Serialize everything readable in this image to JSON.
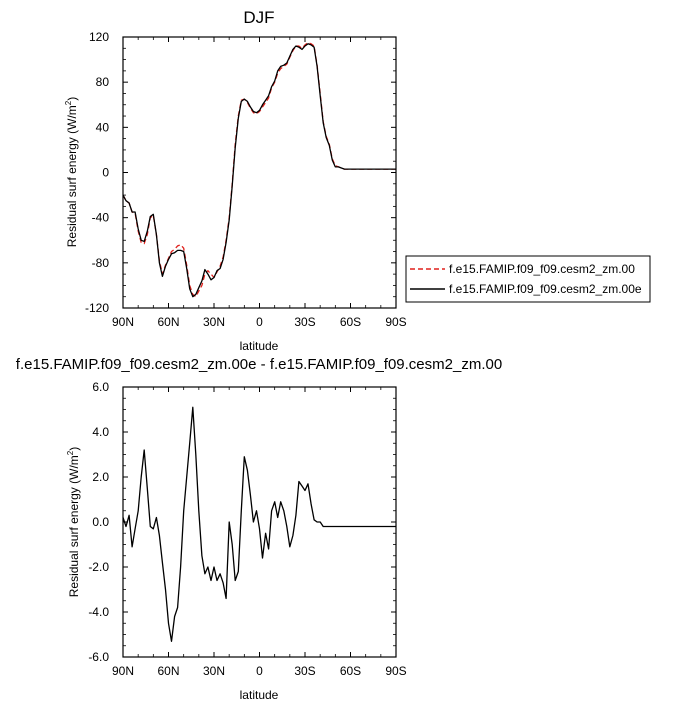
{
  "chart_data": [
    {
      "type": "line",
      "title": "DJF",
      "xlabel": "latitude",
      "ylabel": "Residual surf energy (W/m",
      "ylabel_sup": "2",
      "ylabel_close": ")",
      "xlim": [
        90,
        -90
      ],
      "ylim": [
        -120,
        120
      ],
      "x_ticks": [
        90,
        60,
        30,
        0,
        -30,
        -60,
        -90
      ],
      "x_tick_labels": [
        "90N",
        "60N",
        "30N",
        "0",
        "30S",
        "60S",
        "90S"
      ],
      "y_ticks": [
        -120,
        -80,
        -40,
        0,
        40,
        80,
        120
      ],
      "y_tick_labels": [
        "-120",
        "-80",
        "-40",
        "0",
        "40",
        "80",
        "120"
      ],
      "legend_position": "right",
      "series": [
        {
          "name": "f.e15.FAMIP.f09_f09.cesm2_zm.00",
          "color": "#e0201b",
          "dash": "dashed",
          "x": [
            90,
            88,
            86,
            84,
            82,
            80,
            78,
            76,
            74,
            72,
            70,
            68,
            66,
            64,
            62,
            60,
            58,
            56,
            54,
            52,
            50,
            48,
            46,
            44,
            42,
            40,
            38,
            36,
            34,
            32,
            30,
            28,
            26,
            24,
            22,
            20,
            18,
            16,
            14,
            12,
            10,
            8,
            6,
            4,
            2,
            0,
            -2,
            -4,
            -6,
            -8,
            -10,
            -12,
            -14,
            -16,
            -18,
            -20,
            -22,
            -24,
            -26,
            -28,
            -30,
            -32,
            -34,
            -36,
            -38,
            -40,
            -42,
            -44,
            -46,
            -48,
            -50,
            -52,
            -54,
            -56,
            -58,
            -60,
            -62,
            -64,
            -66,
            -68,
            -70,
            -72,
            -74,
            -76,
            -78,
            -80,
            -82,
            -84,
            -86,
            -88,
            -90
          ],
          "y": [
            -20,
            -25,
            -27,
            -35,
            -36,
            -52,
            -62,
            -63,
            -55,
            -40,
            -38,
            -55,
            -78,
            -90,
            -82,
            -76,
            -70,
            -68,
            -65,
            -64,
            -67,
            -82,
            -100,
            -108,
            -110,
            -105,
            -100,
            -90,
            -87,
            -90,
            -93,
            -88,
            -83,
            -75,
            -60,
            -40,
            -10,
            25,
            50,
            64,
            65,
            62,
            57,
            53,
            52,
            54,
            58,
            62,
            66,
            75,
            80,
            88,
            92,
            94,
            96,
            102,
            108,
            112,
            112,
            110,
            113,
            115,
            114,
            112,
            95,
            70,
            45,
            32,
            25,
            12,
            6,
            5,
            4,
            3,
            3,
            3,
            3,
            3,
            3,
            3,
            3,
            3,
            3,
            3,
            3,
            3,
            3,
            3,
            3,
            3,
            3
          ]
        },
        {
          "name": "f.e15.FAMIP.f09_f09.cesm2_zm.00e",
          "color": "#000000",
          "dash": "solid",
          "x": [
            90,
            88,
            86,
            84,
            82,
            80,
            78,
            76,
            74,
            72,
            70,
            68,
            66,
            64,
            62,
            60,
            58,
            56,
            54,
            52,
            50,
            48,
            46,
            44,
            42,
            40,
            38,
            36,
            34,
            32,
            30,
            28,
            26,
            24,
            22,
            20,
            18,
            16,
            14,
            12,
            10,
            8,
            6,
            4,
            2,
            0,
            -2,
            -4,
            -6,
            -8,
            -10,
            -12,
            -14,
            -16,
            -18,
            -20,
            -22,
            -24,
            -26,
            -28,
            -30,
            -32,
            -34,
            -36,
            -38,
            -40,
            -42,
            -44,
            -46,
            -48,
            -50,
            -52,
            -54,
            -56,
            -58,
            -60,
            -62,
            -64,
            -66,
            -68,
            -70,
            -72,
            -74,
            -76,
            -78,
            -80,
            -82,
            -84,
            -86,
            -88,
            -90
          ],
          "y": [
            -20,
            -25,
            -27,
            -35,
            -35,
            -50,
            -60,
            -61,
            -52,
            -39,
            -37,
            -55,
            -80,
            -92,
            -83,
            -77,
            -72,
            -71,
            -69,
            -69,
            -70,
            -85,
            -103,
            -110,
            -108,
            -102,
            -96,
            -86,
            -90,
            -95,
            -93,
            -87,
            -85,
            -77,
            -62,
            -42,
            -12,
            22,
            48,
            63,
            65,
            63,
            58,
            54,
            53,
            55,
            60,
            64,
            68,
            76,
            81,
            90,
            94,
            95,
            97,
            103,
            109,
            112,
            111,
            109,
            112,
            114,
            113,
            111,
            94,
            68,
            44,
            31,
            24,
            11,
            5,
            5,
            4,
            3,
            3,
            3,
            3,
            3,
            3,
            3,
            3,
            3,
            3,
            3,
            3,
            3,
            3,
            3,
            3,
            3,
            3
          ]
        }
      ]
    },
    {
      "type": "line",
      "title": "f.e15.FAMIP.f09_f09.cesm2_zm.00e - f.e15.FAMIP.f09_f09.cesm2_zm.00",
      "xlabel": "latitude",
      "ylabel": "Residual surf energy (W/m",
      "ylabel_sup": "2",
      "ylabel_close": ")",
      "xlim": [
        90,
        -90
      ],
      "ylim": [
        -6,
        6
      ],
      "x_ticks": [
        90,
        60,
        30,
        0,
        -30,
        -60,
        -90
      ],
      "x_tick_labels": [
        "90N",
        "60N",
        "30N",
        "0",
        "30S",
        "60S",
        "90S"
      ],
      "y_ticks": [
        -6,
        -4,
        -2,
        0,
        2,
        4,
        6
      ],
      "y_tick_labels": [
        "-6.0",
        "-4.0",
        "-2.0",
        "0.0",
        "2.0",
        "4.0",
        "6.0"
      ],
      "series": [
        {
          "color": "#000000",
          "dash": "solid",
          "x": [
            90,
            88,
            86,
            84,
            82,
            80,
            78,
            76,
            74,
            72,
            70,
            68,
            66,
            64,
            62,
            60,
            58,
            56,
            54,
            52,
            50,
            48,
            46,
            44,
            42,
            40,
            38,
            36,
            34,
            32,
            30,
            28,
            26,
            24,
            22,
            20,
            18,
            16,
            14,
            12,
            10,
            8,
            6,
            4,
            2,
            0,
            -2,
            -4,
            -6,
            -8,
            -10,
            -12,
            -14,
            -16,
            -18,
            -20,
            -22,
            -24,
            -26,
            -28,
            -30,
            -32,
            -34,
            -36,
            -38,
            -40,
            -42,
            -44,
            -46,
            -48,
            -50,
            -52,
            -54,
            -56,
            -58,
            -60,
            -62,
            -64,
            -66,
            -68,
            -70,
            -72,
            -74,
            -76,
            -78,
            -80,
            -82,
            -84,
            -86,
            -88,
            -90
          ],
          "y": [
            0.2,
            -0.2,
            0.3,
            -1.1,
            -0.3,
            0.5,
            2.0,
            3.2,
            1.5,
            -0.2,
            -0.3,
            0.2,
            -0.6,
            -1.8,
            -3.0,
            -4.5,
            -5.3,
            -4.2,
            -3.8,
            -2.0,
            0.5,
            2.0,
            3.5,
            5.1,
            3.0,
            0.5,
            -1.5,
            -2.3,
            -2.0,
            -2.6,
            -2.0,
            -2.6,
            -2.3,
            -2.7,
            -3.4,
            0.0,
            -1.0,
            -2.6,
            -2.2,
            0.5,
            2.9,
            2.3,
            1.2,
            0.0,
            0.5,
            -0.3,
            -1.6,
            -0.5,
            -1.2,
            0.5,
            0.9,
            0.2,
            0.9,
            0.5,
            -0.2,
            -1.1,
            -0.6,
            0.3,
            1.8,
            1.6,
            1.4,
            1.7,
            0.8,
            0.1,
            0.0,
            0.0,
            -0.2,
            -0.2,
            -0.2,
            -0.2,
            -0.2,
            -0.2,
            -0.2,
            -0.2,
            -0.2,
            -0.2,
            -0.2,
            -0.2,
            -0.2,
            -0.2,
            -0.2,
            -0.2,
            -0.2,
            -0.2,
            -0.2,
            -0.2,
            -0.2,
            -0.2,
            -0.2,
            -0.2,
            -0.2
          ]
        }
      ]
    }
  ]
}
